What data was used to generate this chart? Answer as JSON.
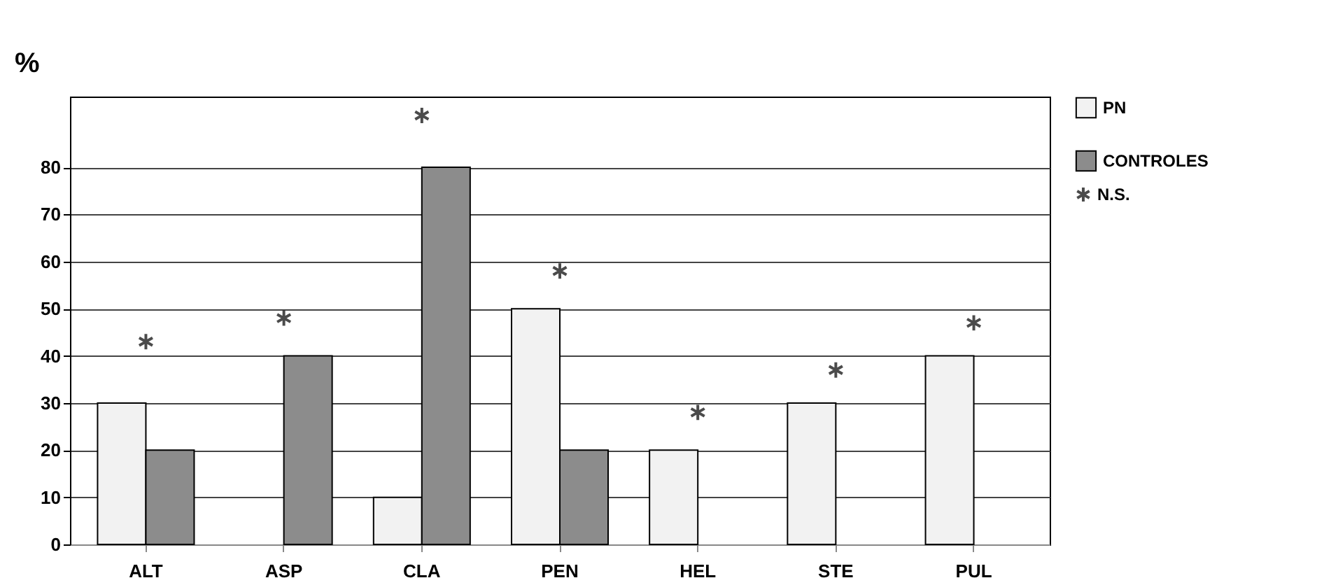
{
  "chart_data": {
    "type": "bar",
    "ylabel": "%",
    "categories": [
      "ALT",
      "ASP",
      "CLA",
      "PEN",
      "HEL",
      "STE",
      "PUL"
    ],
    "series": [
      {
        "name": "PN",
        "color": "#f2f2f2",
        "values": [
          30,
          0,
          10,
          50,
          20,
          30,
          40
        ]
      },
      {
        "name": "CONTROLES",
        "color": "#8c8c8c",
        "values": [
          20,
          40,
          80,
          20,
          0,
          0,
          0
        ]
      },
      {
        "name": "N.S.",
        "type": "scatter",
        "marker": "cross",
        "color": "#000000",
        "values": [
          43,
          48,
          91,
          58,
          28,
          37,
          47
        ]
      }
    ],
    "ylim": [
      0,
      95
    ],
    "yticks": [
      0,
      10,
      20,
      30,
      40,
      50,
      60,
      70,
      80
    ],
    "grid": "y",
    "legend": "right"
  }
}
